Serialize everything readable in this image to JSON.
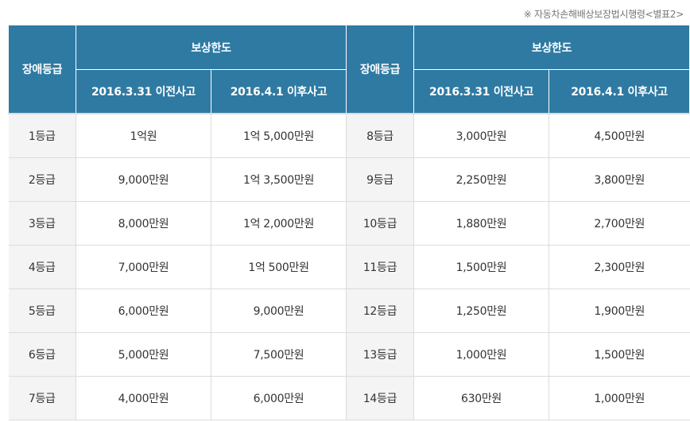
{
  "source_note": "※ 자동차손해배상보장법시행령<별표2>",
  "header": {
    "grade": "장애등급",
    "limit": "보상한도",
    "before": "2016.3.31 이전사고",
    "after": "2016.4.1 이후사고"
  },
  "rows": [
    {
      "g1": "1등급",
      "b1": "1억원",
      "a1": "1억 5,000만원",
      "g2": "8등급",
      "b2": "3,000만원",
      "a2": "4,500만원"
    },
    {
      "g1": "2등급",
      "b1": "9,000만원",
      "a1": "1억 3,500만원",
      "g2": "9등급",
      "b2": "2,250만원",
      "a2": "3,800만원"
    },
    {
      "g1": "3등급",
      "b1": "8,000만원",
      "a1": "1억 2,000만원",
      "g2": "10등급",
      "b2": "1,880만원",
      "a2": "2,700만원"
    },
    {
      "g1": "4등급",
      "b1": "7,000만원",
      "a1": "1억 500만원",
      "g2": "11등급",
      "b2": "1,500만원",
      "a2": "2,300만원"
    },
    {
      "g1": "5등급",
      "b1": "6,000만원",
      "a1": "9,000만원",
      "g2": "12등급",
      "b2": "1,250만원",
      "a2": "1,900만원"
    },
    {
      "g1": "6등급",
      "b1": "5,000만원",
      "a1": "7,500만원",
      "g2": "13등급",
      "b2": "1,000만원",
      "a2": "1,500만원"
    },
    {
      "g1": "7등급",
      "b1": "4,000만원",
      "a1": "6,000만원",
      "g2": "14등급",
      "b2": "630만원",
      "a2": "1,000만원"
    }
  ],
  "colors": {
    "header_bg": "#2e7aa3",
    "grade_bg": "#f4f4f4",
    "border": "#dcdcdc"
  }
}
